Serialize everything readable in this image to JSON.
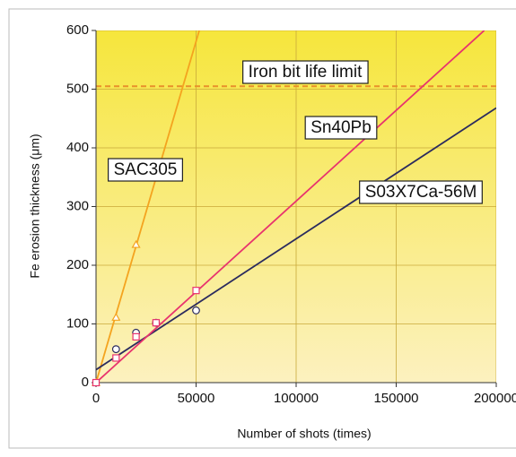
{
  "chart_data": {
    "type": "scatter",
    "xlabel": "Number of shots (times)",
    "ylabel": "Fe erosion thickness (μm)",
    "xlim": [
      0,
      200000
    ],
    "ylim": [
      0,
      600
    ],
    "xticks": [
      0,
      50000,
      100000,
      150000,
      200000
    ],
    "yticks": [
      0,
      100,
      200,
      300,
      400,
      500,
      600
    ],
    "limit": {
      "value": 505,
      "label": "Iron bit life limit",
      "color": "#e8902a"
    },
    "series": [
      {
        "name": "SAC305",
        "color": "#f4a31f",
        "label_color": "#111111",
        "marker": "triangle",
        "x": [
          0,
          10000,
          20000
        ],
        "values": [
          0,
          111,
          235
        ],
        "fit_x": [
          0,
          51600
        ],
        "fit_values": [
          0,
          600
        ]
      },
      {
        "name": "Sn40Pb",
        "color": "#2b2b5e",
        "label_color": "#111111",
        "marker": "circle",
        "x": [
          10000,
          20000,
          30000,
          50000
        ],
        "values": [
          57,
          85,
          102,
          123
        ],
        "fit_x": [
          0,
          200000
        ],
        "fit_values": [
          22,
          468
        ]
      },
      {
        "name": "S03X7Ca-56M",
        "color": "#e8336e",
        "label_color": "#e8192e",
        "marker": "square",
        "x": [
          0,
          10000,
          20000,
          30000,
          50000
        ],
        "values": [
          0,
          42,
          78,
          102,
          157
        ],
        "fit_x": [
          0,
          194000
        ],
        "fit_values": [
          0,
          600
        ]
      }
    ]
  }
}
